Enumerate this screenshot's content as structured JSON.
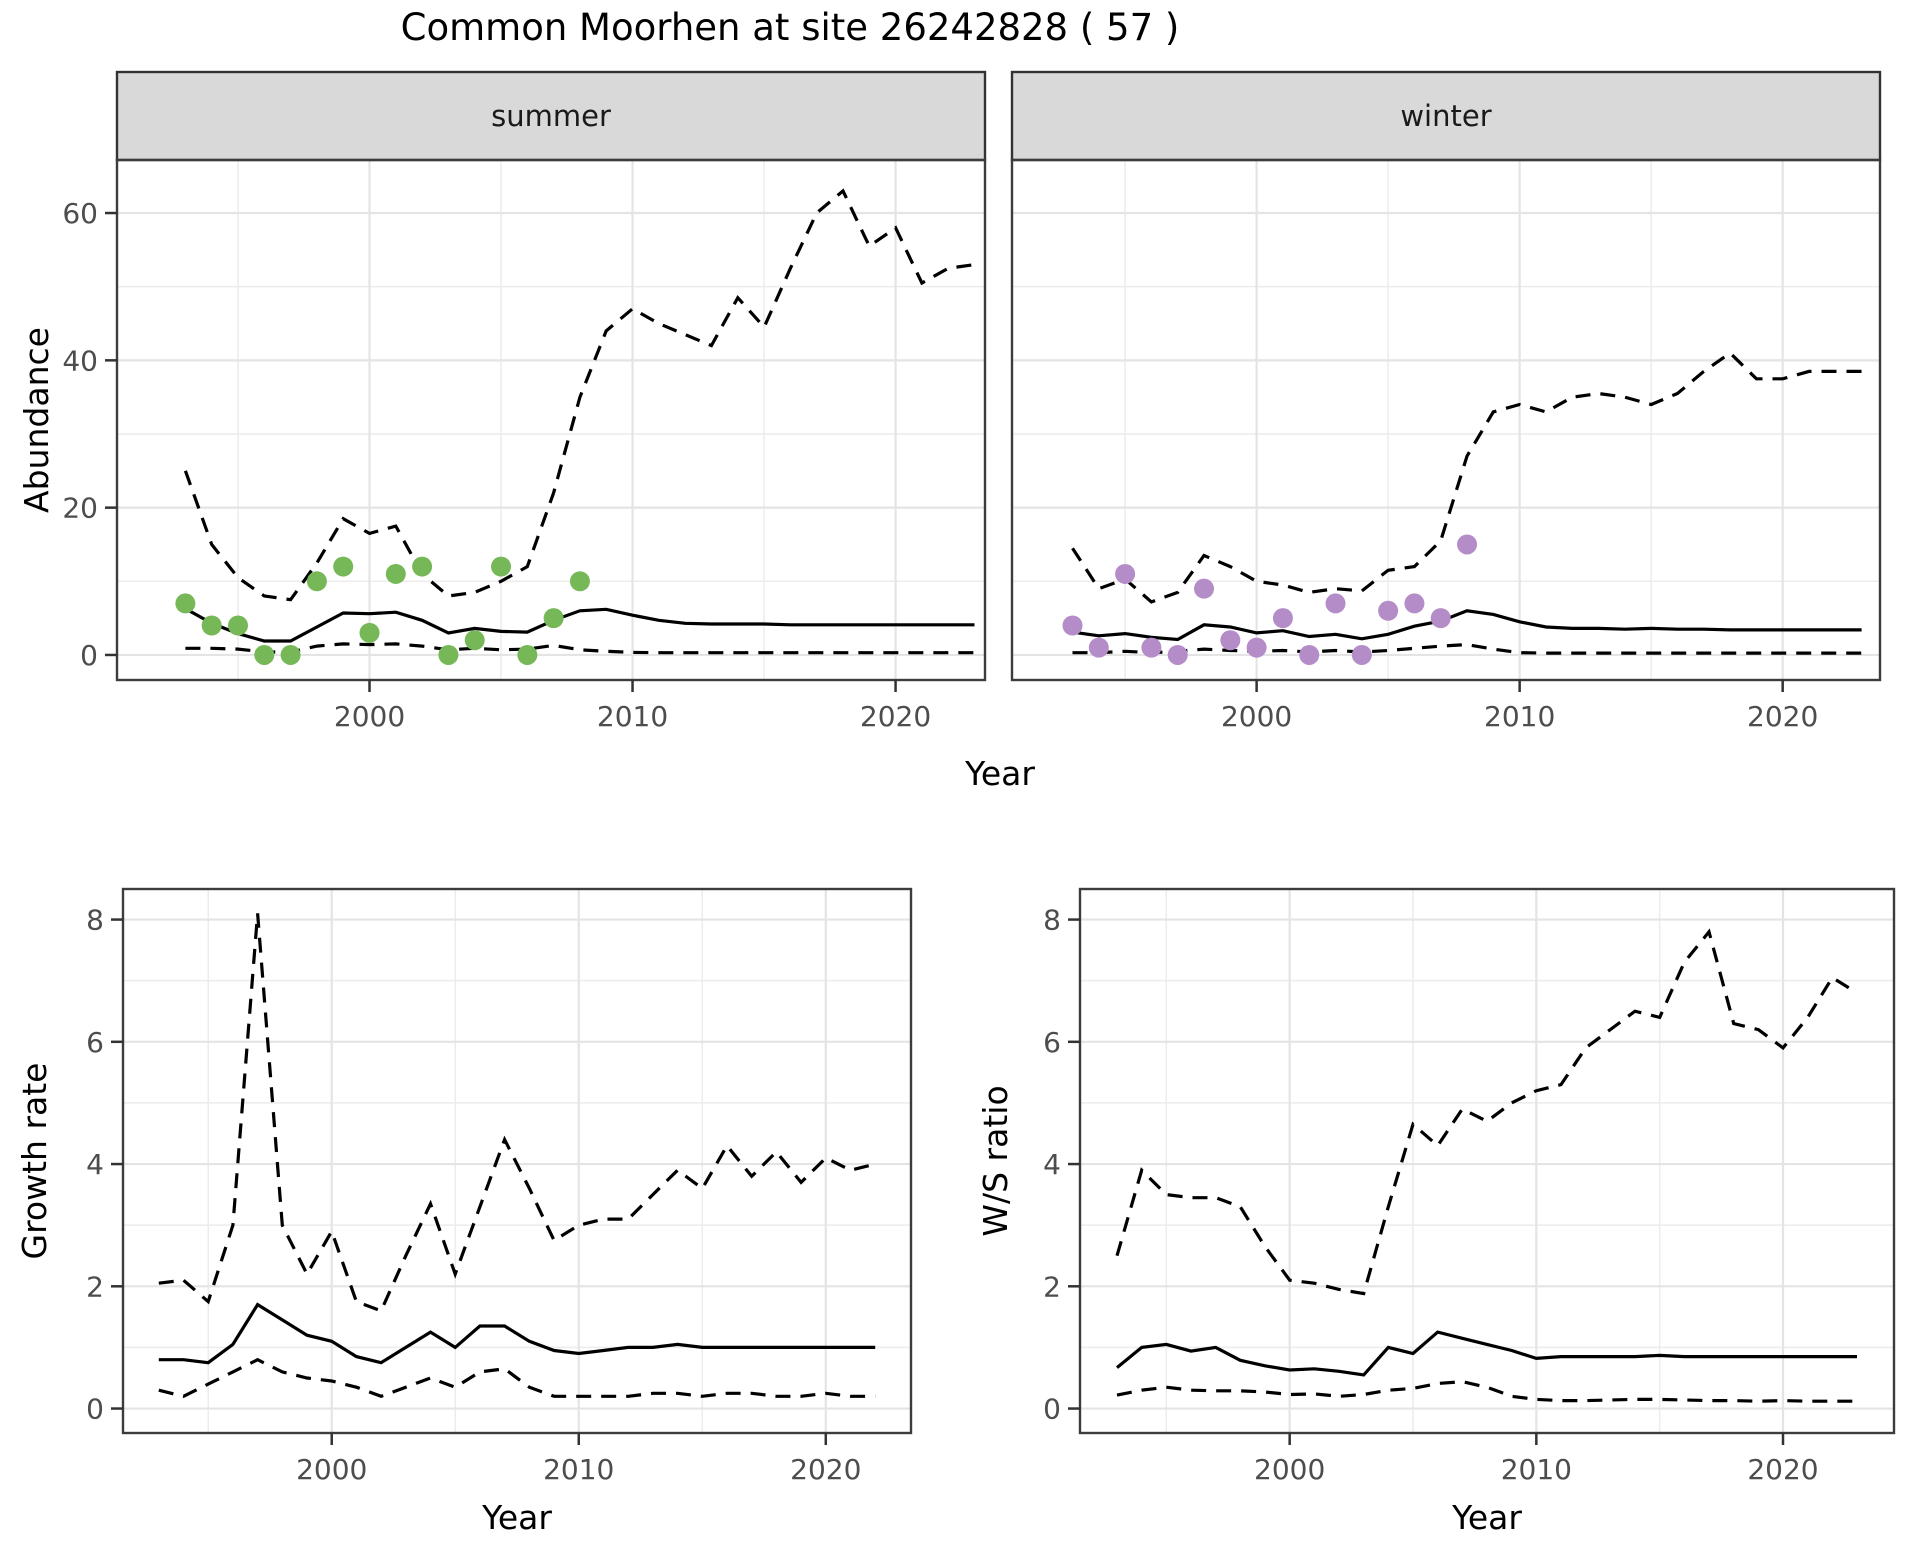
{
  "title": "Common Moorhen at site 26242828 ( 57 )",
  "facets": [
    "summer",
    "winter"
  ],
  "axes": {
    "y_top": "Abundance",
    "x_top": "Year",
    "y_bottom_left": "Growth rate",
    "x_bottom_left": "Year",
    "y_bottom_right": "W/S ratio",
    "x_bottom_right": "Year"
  },
  "colors": {
    "observed_summer": "#76B858",
    "observed_winter": "#B48CC8",
    "line": "#000000",
    "grid_major": "#E4E4E4",
    "grid_minor": "#ECECEC",
    "panel_border": "#3C3C3C",
    "strip_fill": "#D9D9D9",
    "strip_border": "#333333",
    "axis_text": "#4D4D4D",
    "tick_mark": "#333333"
  },
  "chart_data": [
    {
      "name": "summer-abundance",
      "type": "line",
      "facet_label": "summer",
      "xlabel": "Year",
      "ylabel": "Abundance",
      "xlim": [
        1990.4,
        2023.4
      ],
      "ylim": [
        -3.4,
        67.2
      ],
      "x_ticks": [
        2000,
        2010,
        2020
      ],
      "x_minor": [
        1995,
        2005,
        2015
      ],
      "y_ticks": [
        0,
        20,
        40,
        60
      ],
      "y_minor": [
        10,
        30,
        50
      ],
      "series": [
        {
          "name": "upper-ci",
          "style": "dashed",
          "x": [
            1993,
            1994,
            1995,
            1996,
            1997,
            1998,
            1999,
            2000,
            2001,
            2002,
            2003,
            2004,
            2005,
            2006,
            2007,
            2008,
            2009,
            2010,
            2011,
            2012,
            2013,
            2014,
            2015,
            2016,
            2017,
            2018,
            2019,
            2020,
            2021,
            2022,
            2023
          ],
          "y": [
            25,
            15,
            10.5,
            8,
            7.5,
            12.5,
            18.5,
            16.5,
            17.5,
            11,
            8,
            8.5,
            10,
            12,
            22,
            35,
            44,
            47,
            45,
            43.5,
            42,
            48.5,
            44.5,
            52.5,
            60,
            63,
            55.5,
            58,
            50.5,
            52.5,
            53
          ]
        },
        {
          "name": "lower-ci",
          "style": "dashed",
          "x": [
            1993,
            1994,
            1995,
            1996,
            1997,
            1998,
            1999,
            2000,
            2001,
            2002,
            2003,
            2004,
            2005,
            2006,
            2007,
            2008,
            2009,
            2010,
            2011,
            2012,
            2013,
            2014,
            2015,
            2016,
            2017,
            2018,
            2019,
            2020,
            2021,
            2022,
            2023
          ],
          "y": [
            0.9,
            0.9,
            0.8,
            0.4,
            0.4,
            1.2,
            1.5,
            1.4,
            1.5,
            1.2,
            0.7,
            0.9,
            0.7,
            0.8,
            1.3,
            0.7,
            0.5,
            0.35,
            0.3,
            0.3,
            0.3,
            0.3,
            0.3,
            0.3,
            0.3,
            0.3,
            0.3,
            0.3,
            0.3,
            0.3,
            0.3
          ]
        },
        {
          "name": "median",
          "style": "solid",
          "x": [
            1993,
            1994,
            1995,
            1996,
            1997,
            1998,
            1999,
            2000,
            2001,
            2002,
            2003,
            2004,
            2005,
            2006,
            2007,
            2008,
            2009,
            2010,
            2011,
            2012,
            2013,
            2014,
            2015,
            2016,
            2017,
            2018,
            2019,
            2020,
            2021,
            2022,
            2023
          ],
          "y": [
            6.3,
            4.3,
            2.9,
            1.9,
            1.9,
            3.8,
            5.7,
            5.6,
            5.8,
            4.7,
            3.0,
            3.6,
            3.2,
            3.1,
            4.7,
            6.0,
            6.2,
            5.4,
            4.7,
            4.3,
            4.2,
            4.2,
            4.2,
            4.1,
            4.1,
            4.1,
            4.1,
            4.1,
            4.1,
            4.1,
            4.1
          ]
        },
        {
          "name": "observed",
          "style": "points",
          "color": "#76B858",
          "x": [
            1993,
            1994,
            1995,
            1996,
            1997,
            1998,
            1999,
            2000,
            2001,
            2002,
            2003,
            2004,
            2005,
            2006,
            2007,
            2008
          ],
          "y": [
            7,
            4,
            4,
            0,
            0,
            10,
            12,
            3,
            11,
            12,
            0,
            2,
            12,
            0,
            5,
            10
          ]
        }
      ]
    },
    {
      "name": "winter-abundance",
      "type": "line",
      "facet_label": "winter",
      "xlabel": "Year",
      "ylabel": "Abundance",
      "xlim": [
        1990.7,
        2023.7
      ],
      "ylim": [
        -3.4,
        67.2
      ],
      "x_ticks": [
        2000,
        2010,
        2020
      ],
      "x_minor": [
        1995,
        2005,
        2015
      ],
      "y_ticks": [
        0,
        20,
        40,
        60
      ],
      "y_minor": [
        10,
        30,
        50
      ],
      "series": [
        {
          "name": "upper-ci",
          "style": "dashed",
          "x": [
            1993,
            1994,
            1995,
            1996,
            1997,
            1998,
            1999,
            2000,
            2001,
            2002,
            2003,
            2004,
            2005,
            2006,
            2007,
            2008,
            2009,
            2010,
            2011,
            2012,
            2013,
            2014,
            2015,
            2016,
            2017,
            2018,
            2019,
            2020,
            2021,
            2022,
            2023
          ],
          "y": [
            14.5,
            9,
            10.3,
            7.2,
            8.5,
            13.5,
            12,
            10,
            9.5,
            8.5,
            9,
            8.7,
            11.5,
            12,
            15.5,
            27,
            33,
            34,
            33,
            35,
            35.5,
            35,
            34,
            35.5,
            38.5,
            41,
            37.5,
            37.5,
            38.5,
            38.5,
            38.5
          ]
        },
        {
          "name": "lower-ci",
          "style": "dashed",
          "x": [
            1993,
            1994,
            1995,
            1996,
            1997,
            1998,
            1999,
            2000,
            2001,
            2002,
            2003,
            2004,
            2005,
            2006,
            2007,
            2008,
            2009,
            2010,
            2011,
            2012,
            2013,
            2014,
            2015,
            2016,
            2017,
            2018,
            2019,
            2020,
            2021,
            2022,
            2023
          ],
          "y": [
            0.3,
            0.3,
            0.5,
            0.3,
            0.5,
            0.8,
            0.6,
            0.5,
            0.6,
            0.4,
            0.6,
            0.4,
            0.6,
            0.9,
            1.2,
            1.4,
            0.8,
            0.3,
            0.25,
            0.25,
            0.25,
            0.25,
            0.25,
            0.25,
            0.25,
            0.25,
            0.25,
            0.25,
            0.25,
            0.25,
            0.25
          ]
        },
        {
          "name": "median",
          "style": "solid",
          "x": [
            1993,
            1994,
            1995,
            1996,
            1997,
            1998,
            1999,
            2000,
            2001,
            2002,
            2003,
            2004,
            2005,
            2006,
            2007,
            2008,
            2009,
            2010,
            2011,
            2012,
            2013,
            2014,
            2015,
            2016,
            2017,
            2018,
            2019,
            2020,
            2021,
            2022,
            2023
          ],
          "y": [
            3.1,
            2.6,
            2.9,
            2.4,
            2.1,
            4.1,
            3.8,
            3.0,
            3.3,
            2.5,
            2.8,
            2.2,
            2.8,
            3.9,
            4.6,
            6.0,
            5.5,
            4.5,
            3.8,
            3.6,
            3.6,
            3.5,
            3.6,
            3.5,
            3.5,
            3.4,
            3.4,
            3.4,
            3.4,
            3.4,
            3.4
          ]
        },
        {
          "name": "observed",
          "style": "points",
          "color": "#B48CC8",
          "x": [
            1993,
            1994,
            1995,
            1996,
            1997,
            1998,
            1999,
            2000,
            2001,
            2002,
            2003,
            2004,
            2005,
            2006,
            2007,
            2008
          ],
          "y": [
            4,
            1,
            11,
            1,
            0,
            9,
            2,
            1,
            5,
            0,
            7,
            0,
            6,
            7,
            5,
            15
          ]
        }
      ]
    },
    {
      "name": "growth-rate",
      "type": "line",
      "facet_label": null,
      "xlabel": "Year",
      "ylabel": "Growth rate",
      "xlim": [
        1991.55,
        2023.45
      ],
      "ylim": [
        -0.4,
        8.5
      ],
      "x_ticks": [
        2000,
        2010,
        2020
      ],
      "x_minor": [
        1995,
        2005,
        2015
      ],
      "y_ticks": [
        0,
        2,
        4,
        6,
        8
      ],
      "y_minor": [
        1,
        3,
        5,
        7
      ],
      "series": [
        {
          "name": "upper-ci",
          "style": "dashed",
          "x": [
            1993,
            1994,
            1995,
            1996,
            1997,
            1998,
            1999,
            2000,
            2001,
            2002,
            2003,
            2004,
            2005,
            2006,
            2007,
            2008,
            2009,
            2010,
            2011,
            2012,
            2013,
            2014,
            2015,
            2016,
            2017,
            2018,
            2019,
            2020,
            2021,
            2022
          ],
          "y": [
            2.05,
            2.1,
            1.75,
            3.0,
            8.1,
            3.0,
            2.2,
            2.9,
            1.75,
            1.6,
            2.5,
            3.35,
            2.2,
            3.3,
            4.4,
            3.6,
            2.75,
            3.0,
            3.1,
            3.1,
            3.5,
            3.9,
            3.6,
            4.3,
            3.8,
            4.2,
            3.7,
            4.1,
            3.9,
            4.0
          ]
        },
        {
          "name": "lower-ci",
          "style": "dashed",
          "x": [
            1993,
            1994,
            1995,
            1996,
            1997,
            1998,
            1999,
            2000,
            2001,
            2002,
            2003,
            2004,
            2005,
            2006,
            2007,
            2008,
            2009,
            2010,
            2011,
            2012,
            2013,
            2014,
            2015,
            2016,
            2017,
            2018,
            2019,
            2020,
            2021,
            2022
          ],
          "y": [
            0.3,
            0.2,
            0.4,
            0.6,
            0.8,
            0.6,
            0.5,
            0.45,
            0.35,
            0.2,
            0.35,
            0.5,
            0.35,
            0.6,
            0.65,
            0.35,
            0.2,
            0.2,
            0.2,
            0.2,
            0.25,
            0.25,
            0.2,
            0.25,
            0.25,
            0.2,
            0.2,
            0.25,
            0.2,
            0.2
          ]
        },
        {
          "name": "median",
          "style": "solid",
          "x": [
            1993,
            1994,
            1995,
            1996,
            1997,
            1998,
            1999,
            2000,
            2001,
            2002,
            2003,
            2004,
            2005,
            2006,
            2007,
            2008,
            2009,
            2010,
            2011,
            2012,
            2013,
            2014,
            2015,
            2016,
            2017,
            2018,
            2019,
            2020,
            2021,
            2022
          ],
          "y": [
            0.8,
            0.8,
            0.75,
            1.05,
            1.7,
            1.45,
            1.2,
            1.1,
            0.85,
            0.75,
            1.0,
            1.25,
            1.0,
            1.35,
            1.35,
            1.1,
            0.95,
            0.9,
            0.95,
            1.0,
            1.0,
            1.05,
            1.0,
            1.0,
            1.0,
            1.0,
            1.0,
            1.0,
            1.0,
            1.0
          ]
        }
      ]
    },
    {
      "name": "ws-ratio",
      "type": "line",
      "facet_label": null,
      "xlabel": "Year",
      "ylabel": "W/S ratio",
      "xlim": [
        1991.5,
        2024.5
      ],
      "ylim": [
        -0.4,
        8.5
      ],
      "x_ticks": [
        2000,
        2010,
        2020
      ],
      "x_minor": [
        1995,
        2005,
        2015
      ],
      "y_ticks": [
        0,
        2,
        4,
        6,
        8
      ],
      "y_minor": [
        1,
        3,
        5,
        7
      ],
      "series": [
        {
          "name": "upper-ci",
          "style": "dashed",
          "x": [
            1993,
            1994,
            1995,
            1996,
            1997,
            1998,
            1999,
            2000,
            2001,
            2002,
            2003,
            2004,
            2005,
            2006,
            2007,
            2008,
            2009,
            2010,
            2011,
            2012,
            2013,
            2014,
            2015,
            2016,
            2017,
            2018,
            2019,
            2020,
            2021,
            2022,
            2023
          ],
          "y": [
            2.5,
            3.9,
            3.5,
            3.45,
            3.45,
            3.3,
            2.65,
            2.1,
            2.05,
            1.95,
            1.88,
            3.3,
            4.65,
            4.3,
            4.9,
            4.7,
            5.0,
            5.2,
            5.3,
            5.9,
            6.2,
            6.5,
            6.4,
            7.3,
            7.8,
            6.3,
            6.2,
            5.9,
            6.4,
            7.05,
            6.8
          ]
        },
        {
          "name": "lower-ci",
          "style": "dashed",
          "x": [
            1993,
            1994,
            1995,
            1996,
            1997,
            1998,
            1999,
            2000,
            2001,
            2002,
            2003,
            2004,
            2005,
            2006,
            2007,
            2008,
            2009,
            2010,
            2011,
            2012,
            2013,
            2014,
            2015,
            2016,
            2017,
            2018,
            2019,
            2020,
            2021,
            2022,
            2023
          ],
          "y": [
            0.22,
            0.3,
            0.35,
            0.3,
            0.29,
            0.29,
            0.27,
            0.23,
            0.24,
            0.2,
            0.23,
            0.3,
            0.33,
            0.41,
            0.44,
            0.35,
            0.2,
            0.15,
            0.13,
            0.13,
            0.14,
            0.15,
            0.15,
            0.14,
            0.13,
            0.13,
            0.12,
            0.13,
            0.12,
            0.12,
            0.12
          ]
        },
        {
          "name": "median",
          "style": "solid",
          "x": [
            1993,
            1994,
            1995,
            1996,
            1997,
            1998,
            1999,
            2000,
            2001,
            2002,
            2003,
            2004,
            2005,
            2006,
            2007,
            2008,
            2009,
            2010,
            2011,
            2012,
            2013,
            2014,
            2015,
            2016,
            2017,
            2018,
            2019,
            2020,
            2021,
            2022,
            2023
          ],
          "y": [
            0.67,
            1.0,
            1.05,
            0.94,
            1.0,
            0.79,
            0.7,
            0.63,
            0.65,
            0.61,
            0.55,
            1.0,
            0.9,
            1.25,
            1.15,
            1.05,
            0.95,
            0.82,
            0.85,
            0.85,
            0.85,
            0.85,
            0.87,
            0.85,
            0.85,
            0.85,
            0.85,
            0.85,
            0.85,
            0.85,
            0.85
          ]
        }
      ]
    }
  ]
}
